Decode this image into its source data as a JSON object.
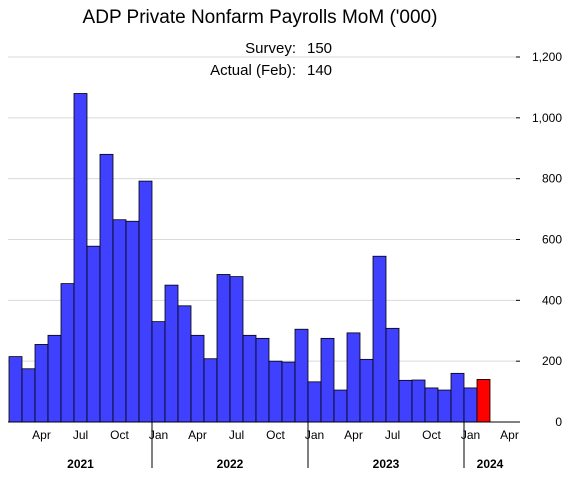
{
  "chart_data": {
    "type": "bar",
    "title": "ADP Private Nonfarm Payrolls MoM ('000)",
    "annotations": [
      {
        "label": "Survey:",
        "value": "150"
      },
      {
        "label": "Actual (Feb):",
        "value": "140"
      }
    ],
    "categories": [
      "2021-02",
      "2021-03",
      "2021-04",
      "2021-05",
      "2021-06",
      "2021-07",
      "2021-08",
      "2021-09",
      "2021-10",
      "2021-11",
      "2021-12",
      "2022-01",
      "2022-02",
      "2022-03",
      "2022-04",
      "2022-05",
      "2022-06",
      "2022-07",
      "2022-08",
      "2022-09",
      "2022-10",
      "2022-11",
      "2022-12",
      "2023-01",
      "2023-02",
      "2023-03",
      "2023-04",
      "2023-05",
      "2023-06",
      "2023-07",
      "2023-08",
      "2023-09",
      "2023-10",
      "2023-11",
      "2023-12",
      "2024-01",
      "2024-02"
    ],
    "values": [
      215,
      175,
      255,
      285,
      455,
      1080,
      578,
      880,
      665,
      660,
      792,
      330,
      450,
      382,
      285,
      208,
      485,
      478,
      285,
      275,
      200,
      197,
      305,
      132,
      275,
      105,
      293,
      206,
      545,
      308,
      137,
      138,
      112,
      105,
      160,
      112,
      140
    ],
    "highlight_index": 36,
    "colors": {
      "bar": "#4040ff",
      "highlight": "#ff0000"
    },
    "x_tick_labels": [
      {
        "month": "2021-04",
        "label": "Apr"
      },
      {
        "month": "2021-07",
        "label": "Jul"
      },
      {
        "month": "2021-10",
        "label": "Oct"
      },
      {
        "month": "2022-01",
        "label": "Jan"
      },
      {
        "month": "2022-04",
        "label": "Apr"
      },
      {
        "month": "2022-07",
        "label": "Jul"
      },
      {
        "month": "2022-10",
        "label": "Oct"
      },
      {
        "month": "2023-01",
        "label": "Jan"
      },
      {
        "month": "2023-04",
        "label": "Apr"
      },
      {
        "month": "2023-07",
        "label": "Jul"
      },
      {
        "month": "2023-10",
        "label": "Oct"
      },
      {
        "month": "2024-01",
        "label": "Jan"
      },
      {
        "month": "2024-04",
        "label": "Apr"
      }
    ],
    "years": [
      "2021",
      "2022",
      "2023",
      "2024"
    ],
    "y_ticks": [
      "0",
      "200",
      "400",
      "600",
      "800",
      "1,000",
      "1,200"
    ],
    "ylim": [
      0,
      1200
    ],
    "y_axis_side": "right",
    "grid": true
  }
}
